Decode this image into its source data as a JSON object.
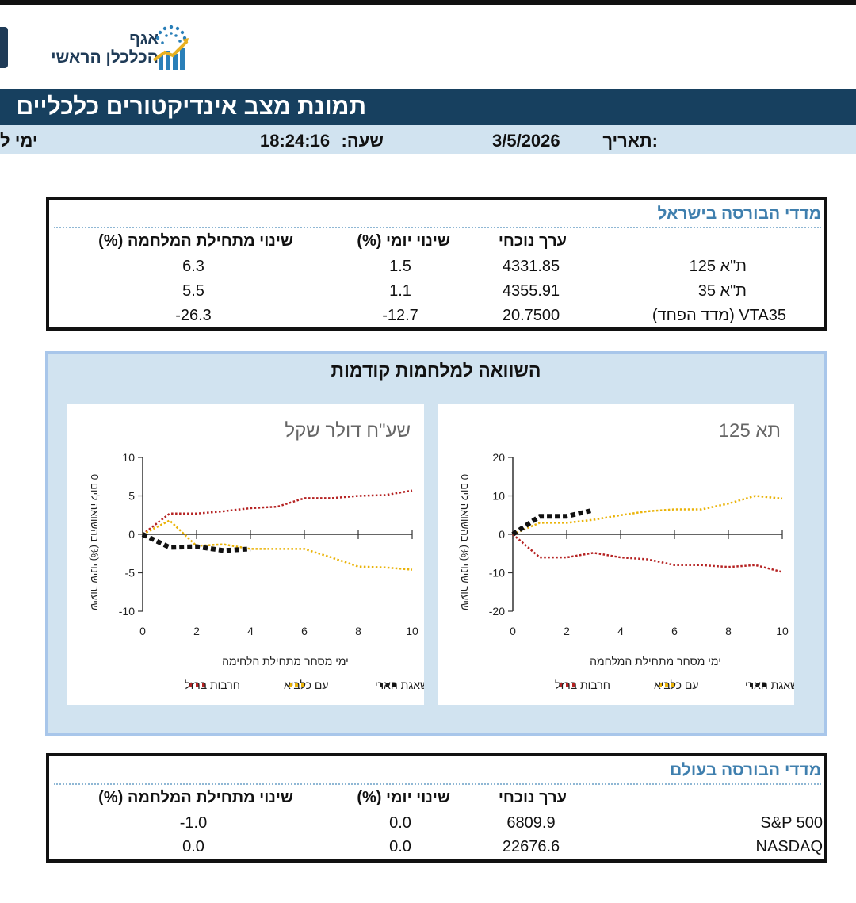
{
  "header": {
    "org_line1": "אגף",
    "org_line2": "הכלכלן הראשי",
    "title": "תמונת מצב אינדיקטורים כלכליים",
    "date_label": "תאריך:",
    "date_value": "3/5/2026",
    "time_label": "שעה:",
    "time_value": "18:24:16",
    "cut_label": "ימי ל"
  },
  "colors": {
    "title_bar": "#17405f",
    "info_bar": "#d1e3f0",
    "section_title": "#3f7fae",
    "iron_swords": "#b52222",
    "am_kelavi": "#eab308",
    "roaring_lion": "#111111"
  },
  "israel_table": {
    "title": "מדדי הבורסה בישראל",
    "columns": [
      "ערך נוכחי",
      "שינוי יומי (%)",
      "שינוי מתחילת המלחמה (%)"
    ],
    "rows": [
      {
        "name": "ת\"א 125",
        "value": "4331.85",
        "daily": "1.5",
        "since_war": "6.3"
      },
      {
        "name": "ת\"א 35",
        "value": "4355.91",
        "daily": "1.1",
        "since_war": "5.5"
      },
      {
        "name": "VTA35 (מדד הפחד)",
        "value": "20.7500",
        "daily": "-12.7",
        "since_war": "-26.3"
      }
    ]
  },
  "comparison": {
    "title": "השוואה למלחמות קודמות"
  },
  "chart_data": [
    {
      "type": "line",
      "title": "תא 125",
      "xlabel": "ימי מסחר מתחילת המלחמה",
      "ylabel": "שיעור שינוי (%) בהשוואה ליום 0",
      "xlim": [
        0,
        10
      ],
      "ylim": [
        -20,
        20
      ],
      "xticks": [
        0,
        2,
        4,
        6,
        8,
        10
      ],
      "yticks": [
        -20,
        -10,
        0,
        10,
        20
      ],
      "legend_position": "bottom",
      "series": [
        {
          "name": "חרבות ברזל",
          "color": "#b52222",
          "x": [
            0,
            1,
            2,
            3,
            4,
            5,
            6,
            7,
            8,
            9,
            10
          ],
          "y": [
            0,
            -6,
            -6,
            -4.8,
            -6,
            -6.5,
            -8,
            -8,
            -8.5,
            -8,
            -9.8
          ]
        },
        {
          "name": "עם כלביא",
          "color": "#eab308",
          "x": [
            0,
            1,
            2,
            3,
            4,
            5,
            6,
            7,
            8,
            9,
            10
          ],
          "y": [
            0,
            3,
            3,
            3.8,
            5,
            6,
            6.5,
            6.5,
            8,
            10,
            9.3
          ]
        },
        {
          "name": "שאגת הארי",
          "color": "#111111",
          "x": [
            0,
            1,
            2,
            3
          ],
          "y": [
            0,
            4.7,
            4.7,
            6.3
          ]
        }
      ]
    },
    {
      "type": "line",
      "title": "שע\"ח דולר שקל",
      "xlabel": "ימי מסחר מתחילת הלחימה",
      "ylabel": "שיעור שינוי (%) בהשוואה ליום 0",
      "xlim": [
        0,
        10
      ],
      "ylim": [
        -10,
        10
      ],
      "xticks": [
        0,
        2,
        4,
        6,
        8,
        10
      ],
      "yticks": [
        -10,
        -5,
        0,
        5,
        10
      ],
      "legend_position": "bottom",
      "series": [
        {
          "name": "חרבות ברזל",
          "color": "#b52222",
          "x": [
            0,
            1,
            2,
            3,
            4,
            5,
            6,
            7,
            8,
            9,
            10
          ],
          "y": [
            0,
            2.7,
            2.7,
            3,
            3.4,
            3.6,
            4.7,
            4.7,
            5,
            5.1,
            5.7
          ]
        },
        {
          "name": "עם כלביא",
          "color": "#eab308",
          "x": [
            0,
            1,
            2,
            3,
            4,
            5,
            6,
            7,
            8,
            9,
            10
          ],
          "y": [
            0,
            1.8,
            -1.5,
            -1.3,
            -1.9,
            -1.9,
            -1.9,
            -3,
            -4.2,
            -4.3,
            -4.6
          ]
        },
        {
          "name": "שאגת הארי",
          "color": "#111111",
          "x": [
            0,
            1,
            2,
            3,
            4
          ],
          "y": [
            0,
            -1.7,
            -1.6,
            -2.1,
            -1.9
          ]
        }
      ]
    }
  ],
  "world_table": {
    "title": "מדדי הבורסה בעולם",
    "columns": [
      "ערך נוכחי",
      "שינוי יומי (%)",
      "שינוי מתחילת המלחמה (%)"
    ],
    "rows": [
      {
        "name": "S&P 500",
        "value": "6809.9",
        "daily": "0.0",
        "since_war": "-1.0"
      },
      {
        "name": "NASDAQ",
        "value": "22676.6",
        "daily": "0.0",
        "since_war": "0.0"
      }
    ]
  }
}
